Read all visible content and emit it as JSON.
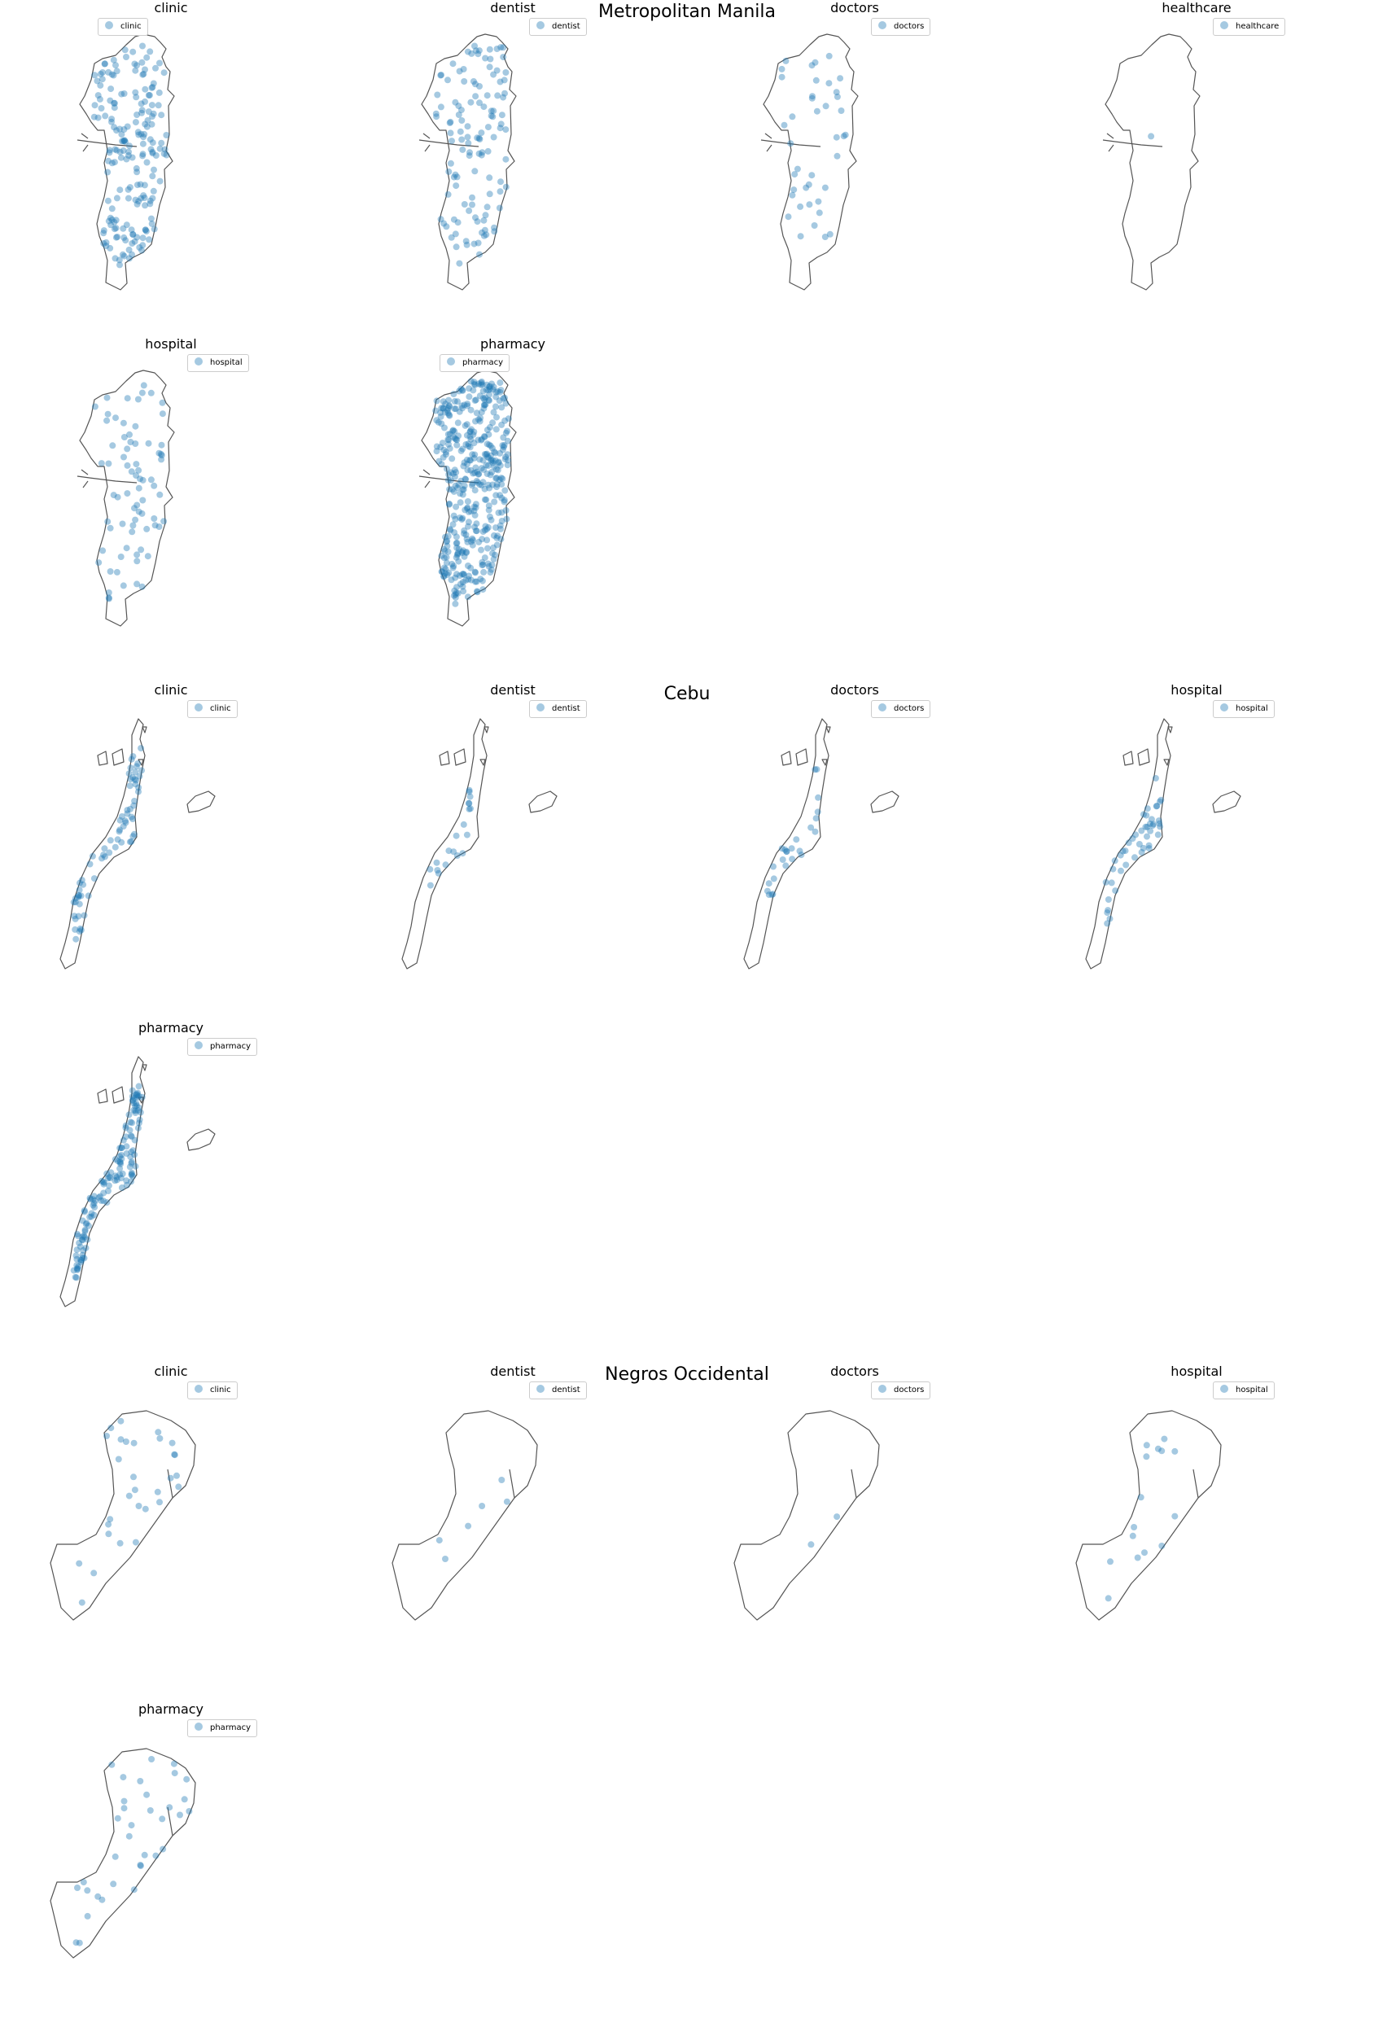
{
  "regions": [
    {
      "title": "Metropolitan Manila",
      "map": "manila",
      "panels": [
        {
          "title": "clinic",
          "legend": "clinic",
          "legend_side": "left",
          "n": 190,
          "spread": 1.0
        },
        {
          "title": "dentist",
          "legend": "dentist",
          "legend_side": "right",
          "n": 120,
          "spread": 1.0
        },
        {
          "title": "doctors",
          "legend": "doctors",
          "legend_side": "right",
          "n": 40,
          "spread": 0.9
        },
        {
          "title": "healthcare",
          "legend": "healthcare",
          "legend_side": "right",
          "n": 1,
          "spread": 0.2
        },
        {
          "title": "hospital",
          "legend": "hospital",
          "legend_side": "right",
          "n": 75,
          "spread": 1.0
        },
        {
          "title": "pharmacy",
          "legend": "pharmacy",
          "legend_side": "left",
          "n": 420,
          "spread": 1.0
        }
      ]
    },
    {
      "title": "Cebu",
      "map": "cebu",
      "panels": [
        {
          "title": "clinic",
          "legend": "clinic",
          "legend_side": "right",
          "n": 70,
          "spread": 1.0
        },
        {
          "title": "dentist",
          "legend": "dentist",
          "legend_side": "right",
          "n": 20,
          "spread": 0.6
        },
        {
          "title": "doctors",
          "legend": "doctors",
          "legend_side": "right",
          "n": 25,
          "spread": 0.8
        },
        {
          "title": "hospital",
          "legend": "hospital",
          "legend_side": "right",
          "n": 45,
          "spread": 0.8
        },
        {
          "title": "pharmacy",
          "legend": "pharmacy",
          "legend_side": "right",
          "n": 140,
          "spread": 1.0
        }
      ]
    },
    {
      "title": "Negros Occidental",
      "map": "negros",
      "panels": [
        {
          "title": "clinic",
          "legend": "clinic",
          "legend_side": "right",
          "n": 30,
          "spread": 1.0
        },
        {
          "title": "dentist",
          "legend": "dentist",
          "legend_side": "right",
          "n": 6,
          "spread": 0.6
        },
        {
          "title": "doctors",
          "legend": "doctors",
          "legend_side": "right",
          "n": 2,
          "spread": 0.4
        },
        {
          "title": "hospital",
          "legend": "hospital",
          "legend_side": "right",
          "n": 15,
          "spread": 0.9
        },
        {
          "title": "pharmacy",
          "legend": "pharmacy",
          "legend_side": "right",
          "n": 35,
          "spread": 1.0
        }
      ]
    }
  ],
  "colors": {
    "point": "#1f77b4",
    "outline": "#555555"
  }
}
